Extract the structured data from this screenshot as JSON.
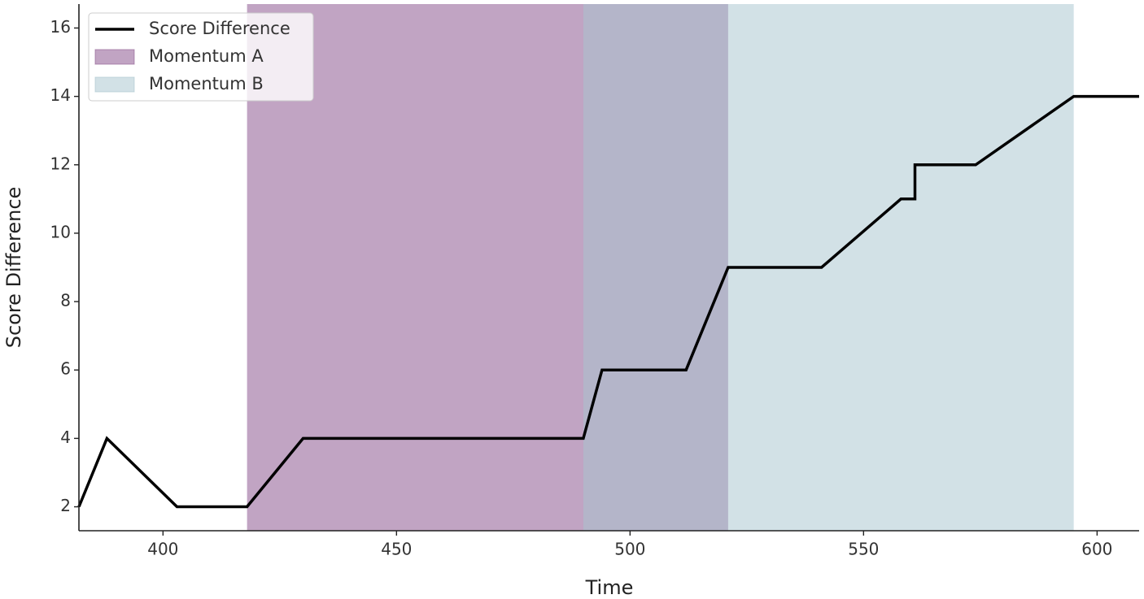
{
  "chart_data": {
    "type": "line",
    "title": "",
    "xlabel": "Time",
    "ylabel": "Score Difference",
    "xlim": [
      382,
      609
    ],
    "ylim": [
      1.3,
      16.7
    ],
    "xticks": [
      400,
      450,
      500,
      550,
      600
    ],
    "yticks": [
      2,
      4,
      6,
      8,
      10,
      12,
      14,
      16
    ],
    "grid": false,
    "legend_position": "top-left",
    "series": [
      {
        "name": "Score Difference",
        "color": "#000000",
        "x": [
          382,
          388,
          403,
          418,
          430,
          490,
          494,
          512,
          521,
          541,
          558,
          561,
          561,
          574,
          595,
          609
        ],
        "y": [
          2,
          4,
          2,
          2,
          4,
          4,
          6,
          6,
          9,
          9,
          11,
          11,
          12,
          12,
          14,
          14
        ]
      }
    ],
    "regions": [
      {
        "name": "Momentum A",
        "x_start": 418,
        "x_end": 521,
        "color": "#8e5a91",
        "opacity": 0.55
      },
      {
        "name": "Momentum B",
        "x_start": 490,
        "x_end": 595,
        "color": "#a9c5cf",
        "opacity": 0.52
      }
    ]
  }
}
